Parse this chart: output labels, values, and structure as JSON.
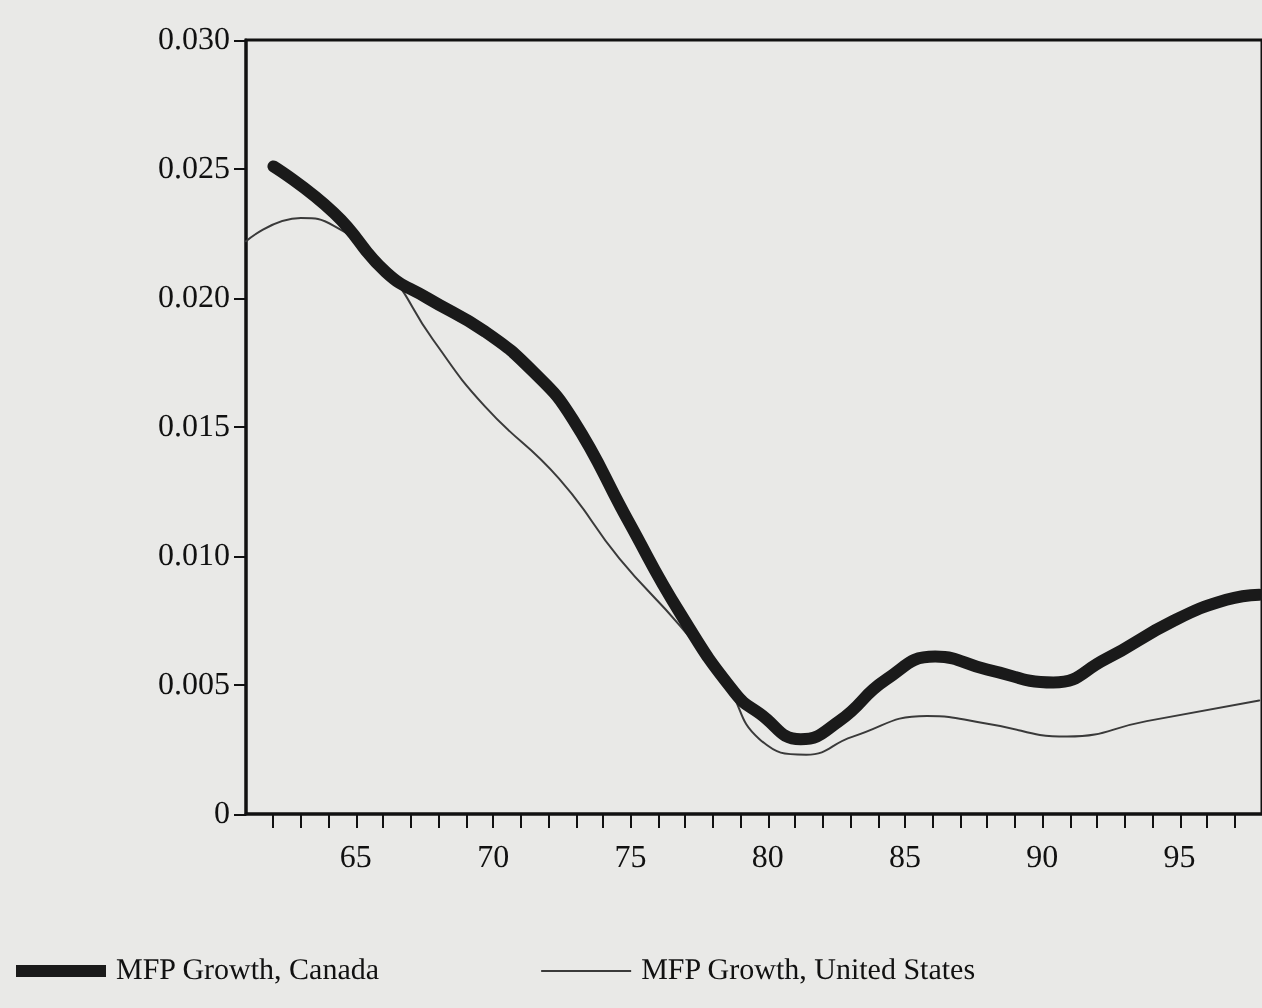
{
  "chart_data": {
    "type": "line",
    "xlim": [
      61,
      98
    ],
    "ylim": [
      0,
      0.03
    ],
    "xticks": [
      {
        "value": 62,
        "label": null
      },
      {
        "value": 63,
        "label": null
      },
      {
        "value": 64,
        "label": null
      },
      65,
      {
        "value": 66,
        "label": null
      },
      {
        "value": 67,
        "label": null
      },
      {
        "value": 68,
        "label": null
      },
      {
        "value": 69,
        "label": null
      },
      70,
      {
        "value": 71,
        "label": null
      },
      {
        "value": 72,
        "label": null
      },
      {
        "value": 73,
        "label": null
      },
      {
        "value": 74,
        "label": null
      },
      75,
      {
        "value": 76,
        "label": null
      },
      {
        "value": 77,
        "label": null
      },
      {
        "value": 78,
        "label": null
      },
      {
        "value": 79,
        "label": null
      },
      80,
      {
        "value": 81,
        "label": null
      },
      {
        "value": 82,
        "label": null
      },
      {
        "value": 83,
        "label": null
      },
      {
        "value": 84,
        "label": null
      },
      85,
      {
        "value": 86,
        "label": null
      },
      {
        "value": 87,
        "label": null
      },
      {
        "value": 88,
        "label": null
      },
      {
        "value": 89,
        "label": null
      },
      90,
      {
        "value": 91,
        "label": null
      },
      {
        "value": 92,
        "label": null
      },
      {
        "value": 93,
        "label": null
      },
      {
        "value": 94,
        "label": null
      },
      95,
      {
        "value": 96,
        "label": null
      },
      {
        "value": 97,
        "label": null
      }
    ],
    "yticks": [
      0,
      0.005,
      {
        "value": 0.01,
        "label": "0.010"
      },
      0.015,
      {
        "value": 0.02,
        "label": "0.020"
      },
      0.025,
      {
        "value": 0.03,
        "label": "0.030"
      }
    ],
    "series": [
      {
        "name": "MFP Growth, Canada",
        "color": "#1a1a1a",
        "x": [
          62.0,
          64.2,
          66.1,
          67.6,
          69.7,
          71.5,
          72.9,
          74.9,
          76.8,
          78.8,
          79.7,
          81.2,
          82.6,
          84.3,
          86.1,
          88.0,
          90.4,
          92.3,
          94.8,
          96.7,
          97.9
        ],
        "values": [
          0.0251,
          0.0233,
          0.021,
          0.02,
          0.0187,
          0.0171,
          0.0153,
          0.0114,
          0.0078,
          0.0047,
          0.0039,
          0.0029,
          0.0036,
          0.0052,
          0.0061,
          0.0056,
          0.0051,
          0.006,
          0.0075,
          0.0083,
          0.0085
        ]
      },
      {
        "name": "MFP Growth, United States",
        "color": "#3a3a3a",
        "x": [
          61.0,
          63.0,
          64.2,
          66.1,
          67.8,
          69.7,
          72.4,
          74.6,
          76.8,
          78.5,
          79.7,
          81.4,
          83.1,
          85.8,
          88.0,
          90.9,
          93.8,
          97.9
        ],
        "values": [
          0.0222,
          0.0231,
          0.0228,
          0.0211,
          0.0184,
          0.0158,
          0.013,
          0.0099,
          0.0073,
          0.005,
          0.0029,
          0.0023,
          0.003,
          0.0038,
          0.0035,
          0.003,
          0.0036,
          0.0044
        ]
      }
    ],
    "grid": false,
    "legend": "bottom",
    "marker": "none",
    "line_style": "solid"
  }
}
